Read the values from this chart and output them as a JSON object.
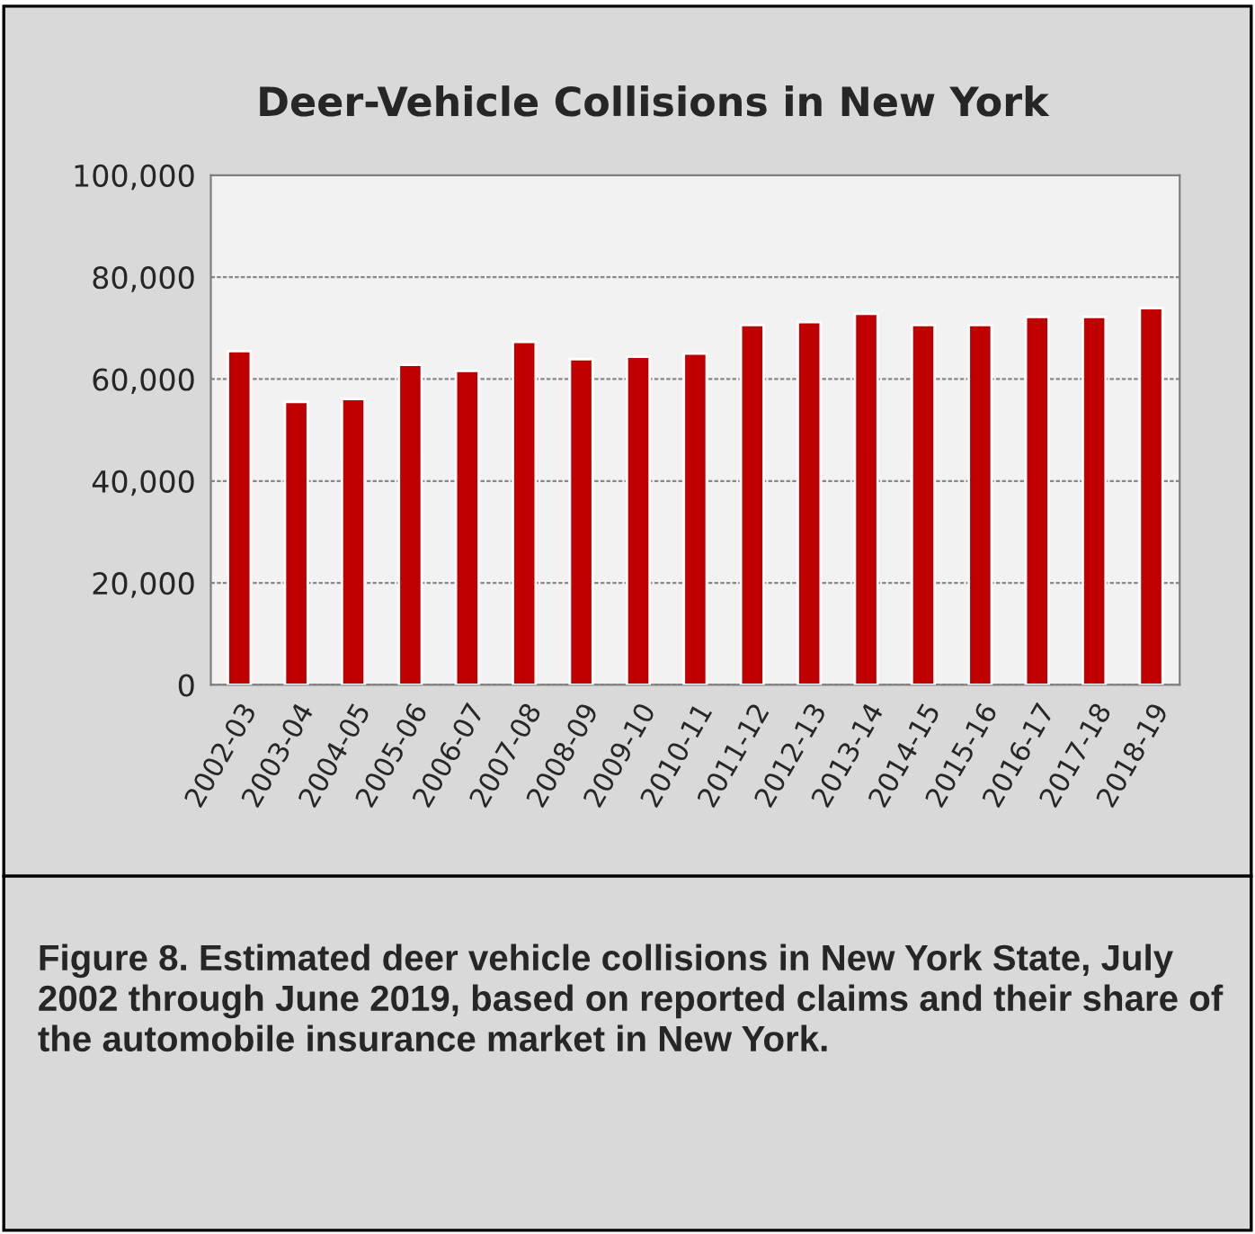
{
  "chart_data": {
    "type": "bar",
    "title": "Deer-Vehicle Collisions in New York",
    "categories": [
      "2002-03",
      "2003-04",
      "2004-05",
      "2005-06",
      "2006-07",
      "2007-08",
      "2008-09",
      "2009-10",
      "2010-11",
      "2011-12",
      "2012-13",
      "2013-14",
      "2014-15",
      "2015-16",
      "2016-17",
      "2017-18",
      "2018-19"
    ],
    "values": [
      65500,
      55500,
      56100,
      62800,
      61600,
      67300,
      63900,
      64400,
      65000,
      70600,
      71200,
      72800,
      70600,
      70600,
      72200,
      72200,
      73900
    ],
    "color": "#c00000",
    "ylim": [
      0,
      100000
    ],
    "yticks": [
      {
        "value": 0,
        "label": "0"
      },
      {
        "value": 20000,
        "label": "20,000"
      },
      {
        "value": 40000,
        "label": "40,000"
      },
      {
        "value": 60000,
        "label": "60,000"
      },
      {
        "value": 80000,
        "label": "80,000"
      },
      {
        "value": 100000,
        "label": "100,000"
      }
    ],
    "grid": "y",
    "annotations": [
      "Figure 8. Estimated deer vehicle collisions in New York State, July 2002 through June 2019, based on reported claims and their share of the automobile insurance market in New York."
    ]
  }
}
